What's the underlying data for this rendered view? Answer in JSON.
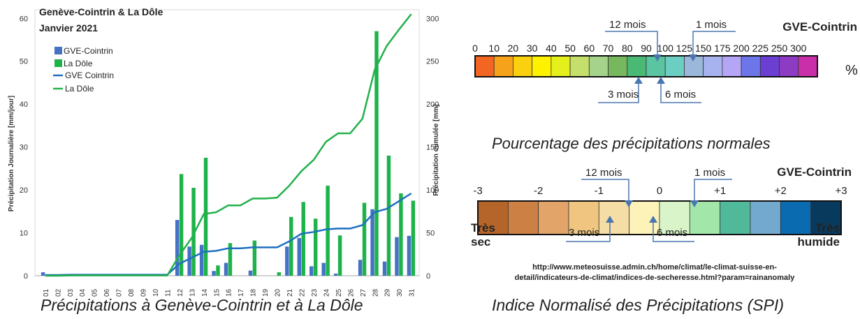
{
  "chart_data": [
    {
      "type": "bar+line",
      "title": "Genève-Cointrin & La Dôle",
      "subtitle": "Janvier 2021",
      "ylabel": "Précipitation Journalière [mm/jour]",
      "y2label": "Précipitation cumulée [mm]",
      "ylim": [
        0,
        62
      ],
      "y2lim": [
        0,
        310
      ],
      "yticks": [
        0,
        10,
        20,
        30,
        40,
        50,
        60
      ],
      "y2ticks": [
        0,
        50,
        100,
        150,
        200,
        250,
        300
      ],
      "categories": [
        "01",
        "02",
        "03",
        "04",
        "05",
        "06",
        "07",
        "08",
        "09",
        "10",
        "11",
        "12",
        "13",
        "14",
        "15",
        "16",
        "17",
        "18",
        "19",
        "20",
        "21",
        "22",
        "23",
        "24",
        "25",
        "26",
        "27",
        "28",
        "29",
        "30",
        "31"
      ],
      "bar_series": [
        {
          "name": "GVE-Cointrin",
          "color": "#4472c4",
          "values": [
            0.8,
            0,
            0.3,
            0,
            0,
            0,
            0,
            0,
            0,
            0,
            0,
            13,
            6.8,
            7.2,
            1.1,
            3,
            0,
            1.2,
            0,
            0,
            6.8,
            8.8,
            2.2,
            3,
            0.5,
            0,
            3.7,
            15.5,
            3.3,
            9,
            9.3
          ]
        },
        {
          "name": "La Dôle",
          "color": "#1db34a",
          "values": [
            0,
            0,
            0.3,
            0,
            0,
            0,
            0,
            0,
            0,
            0,
            0,
            23.7,
            20.5,
            27.5,
            2.4,
            7.6,
            0,
            8.2,
            0,
            0.8,
            13.7,
            17.2,
            13.3,
            21,
            9.4,
            0,
            17,
            57,
            28,
            19.2,
            17.5
          ]
        }
      ],
      "line_series": [
        {
          "name": "GVE Cointrin",
          "color": "#1f6fc0",
          "values": [
            0.8,
            0.8,
            1.1,
            1.1,
            1.1,
            1.1,
            1.1,
            1.1,
            1.1,
            1.1,
            1.1,
            14,
            21,
            28,
            29,
            32,
            32,
            33,
            33,
            33,
            40,
            49,
            51,
            54,
            55,
            55,
            59,
            74,
            78,
            87,
            96
          ]
        },
        {
          "name": "La Dôle",
          "color": "#22b04a",
          "values": [
            0,
            0,
            0.3,
            0.3,
            0.3,
            0.3,
            0.3,
            0.3,
            0.3,
            0.3,
            0.3,
            24,
            44,
            72,
            74,
            82,
            82,
            90,
            90,
            91,
            105,
            122,
            135,
            156,
            166,
            166,
            183,
            240,
            268,
            287,
            305
          ]
        }
      ],
      "legend": [
        "GVE-Cointrin",
        "La Dôle",
        "GVE Cointrin",
        "La Dôle"
      ],
      "legend_position": "top-left"
    }
  ],
  "captions": {
    "left": "Précipitations à Genève-Cointrin et à La Dôle",
    "right": "Indice Normalisé des Précipitations (SPI)"
  },
  "percent_scale": {
    "station": "GVE-Cointrin",
    "unit": "%",
    "ticks": [
      "0",
      "10",
      "20",
      "30",
      "40",
      "50",
      "60",
      "70",
      "80",
      "90",
      "100",
      "125",
      "150",
      "175",
      "200",
      "225",
      "250",
      "300"
    ],
    "colors": [
      "#f26522",
      "#f7a21b",
      "#fbd10f",
      "#fff200",
      "#e4ef1b",
      "#c4df6a",
      "#a6d38c",
      "#77b75e",
      "#4ab973",
      "#5bc4a0",
      "#6ccdc3",
      "#9bb7d9",
      "#a7b3ef",
      "#b5a5f6",
      "#6d76e8",
      "#6a3fd2",
      "#8d3bc3",
      "#c92fa9"
    ],
    "markers": {
      "m12": "12 mois",
      "m1": "1 mois",
      "m3": "3 mois",
      "m6": "6 mois"
    },
    "title": "Pourcentage des précipitations normales"
  },
  "spi_scale": {
    "station": "GVE-Cointrin",
    "ticks": [
      "-3",
      "-2",
      "-1",
      "0",
      "+1",
      "+2",
      "+3"
    ],
    "colors": [
      "#b5652a",
      "#cc8044",
      "#e2a468",
      "#f0c580",
      "#f5dda6",
      "#fdf2b8",
      "#d8f4c8",
      "#a2e6aa",
      "#4fb99a",
      "#74a9cf",
      "#0b6bb0",
      "#083a5e"
    ],
    "markers": {
      "m12": "12 mois",
      "m1": "1 mois",
      "m3": "3 mois",
      "m6": "6 mois"
    },
    "left_label": [
      "Très",
      "sec"
    ],
    "right_label": [
      "Très",
      "humide"
    ]
  },
  "url": [
    "http://www.meteosuisse.admin.ch/home/climat/le-climat-suisse-en-",
    "detail/indicateurs-de-climat/indices-de-secheresse.html?param=rainanomaly"
  ]
}
